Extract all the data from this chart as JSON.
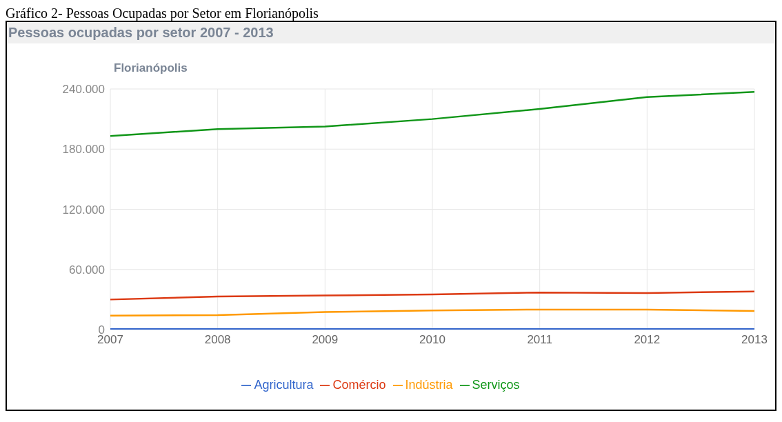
{
  "chart_data": {
    "type": "line",
    "title": "Pessoas ocupadas por setor 2007 - 2013",
    "subtitle": "Florianópolis",
    "annotations": [
      "Gráfico 2- Pessoas Ocupadas por Setor em Florianópolis"
    ],
    "categories": [
      "2007",
      "2008",
      "2009",
      "2010",
      "2011",
      "2012",
      "2013"
    ],
    "series": [
      {
        "name": "Agricultura",
        "color": "#3366cc",
        "values": [
          500,
          500,
          500,
          500,
          500,
          500,
          500
        ]
      },
      {
        "name": "Comércio",
        "color": "#dc3912",
        "values": [
          30000,
          33000,
          34000,
          35000,
          37000,
          36500,
          38000
        ]
      },
      {
        "name": "Indústria",
        "color": "#ff9900",
        "values": [
          14000,
          14500,
          17500,
          19000,
          20000,
          20000,
          18500
        ]
      },
      {
        "name": "Serviços",
        "color": "#109618",
        "values": [
          193000,
          200000,
          202500,
          210000,
          220000,
          232000,
          237000
        ]
      }
    ],
    "ylim": [
      0,
      240000
    ],
    "yticks": [
      {
        "value": 0,
        "label": "0"
      },
      {
        "value": 60000,
        "label": "60.000"
      },
      {
        "value": 120000,
        "label": "120.000"
      },
      {
        "value": 180000,
        "label": "180.000"
      },
      {
        "value": 240000,
        "label": "240.000"
      }
    ],
    "grid": true,
    "legend": "bottom",
    "marker": "none",
    "line_style": "solid"
  }
}
